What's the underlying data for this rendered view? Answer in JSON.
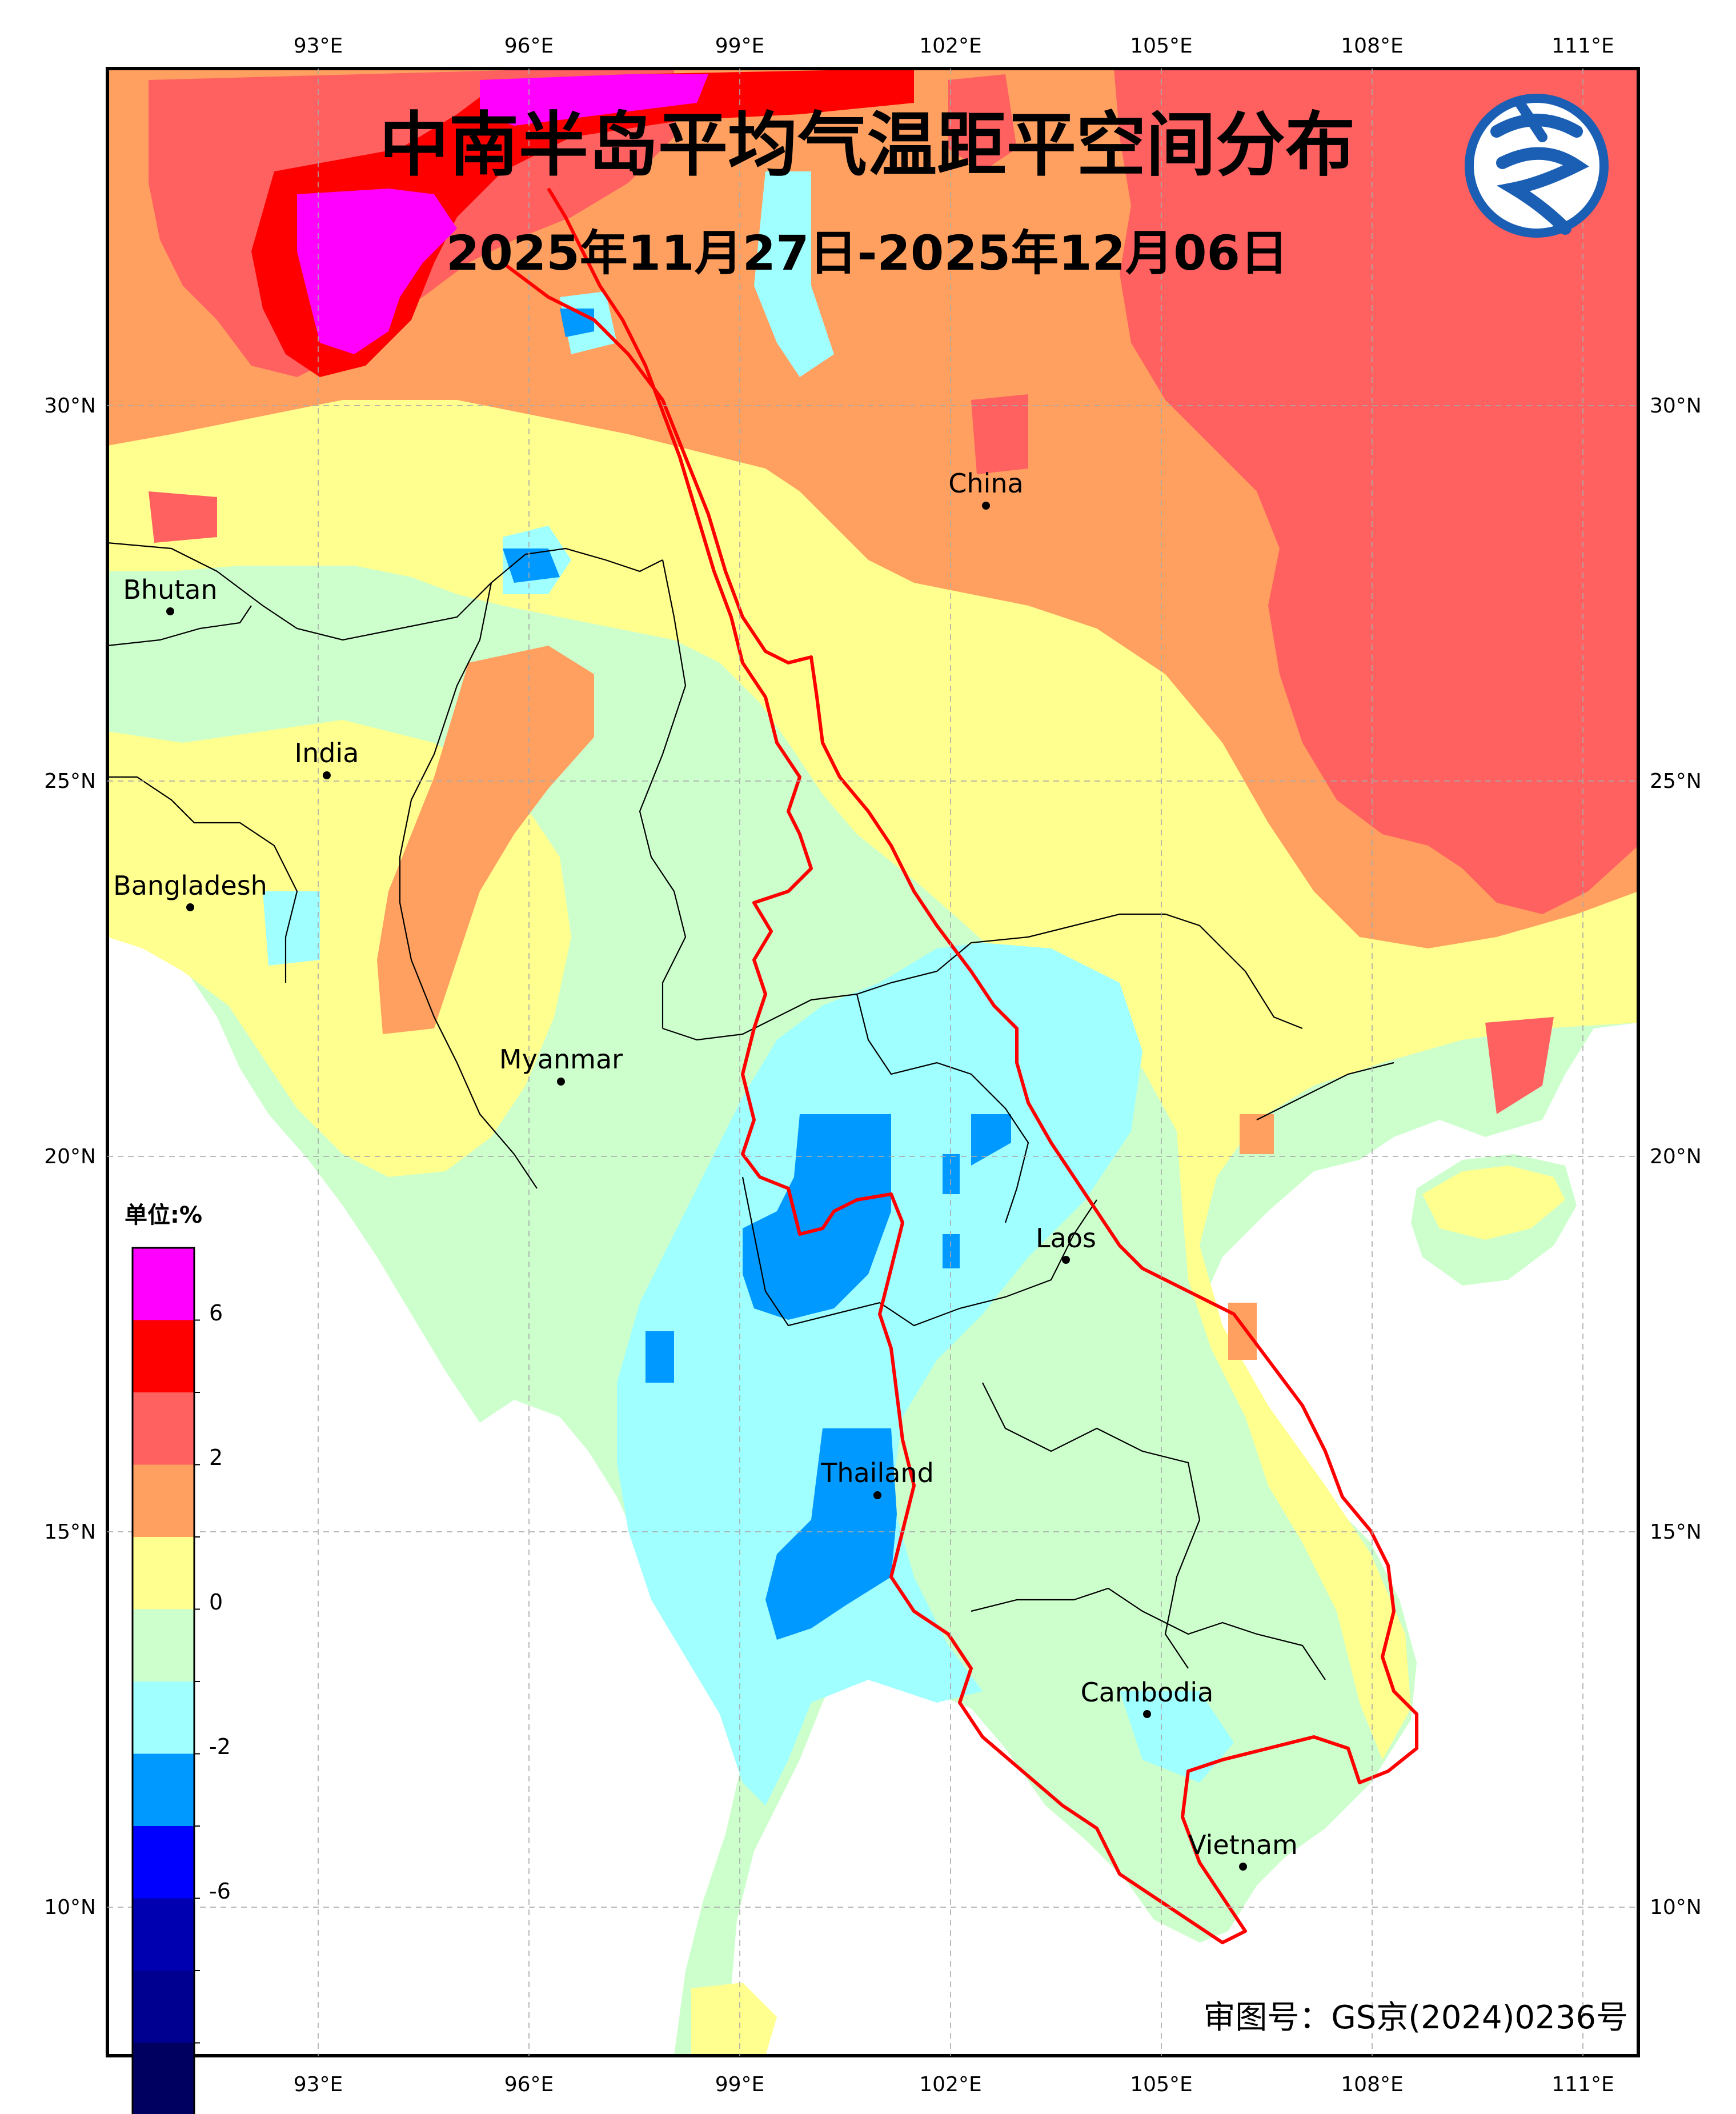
{
  "title": "中南半岛平均气温距平空间分布",
  "subtitle": "2025年11月27日-2025年12月06日",
  "approval_number": "审图号：GS京(2024)0236号",
  "logo": {
    "icon": "cma-climate-logo",
    "color": "#1a5fb4"
  },
  "axes": {
    "lon_ticks": [
      "93°E",
      "96°E",
      "99°E",
      "102°E",
      "105°E",
      "108°E",
      "111°E"
    ],
    "lat_ticks": [
      "30°N",
      "25°N",
      "20°N",
      "15°N",
      "10°N"
    ]
  },
  "places": [
    {
      "name": "China"
    },
    {
      "name": "Bhutan"
    },
    {
      "name": "India"
    },
    {
      "name": "Bangladesh"
    },
    {
      "name": "Myanmar"
    },
    {
      "name": "Laos"
    },
    {
      "name": "Thailand"
    },
    {
      "name": "Cambodia"
    },
    {
      "name": "Vietnam"
    }
  ],
  "legend": {
    "unit": "单位:%",
    "labels": [
      "6",
      "2",
      "0",
      "-2",
      "-6"
    ],
    "colors": [
      "#ff00ff",
      "#ff0000",
      "#ff6060",
      "#ffa060",
      "#ffff90",
      "#ccffcc",
      "#a0ffff",
      "#0099ff",
      "#0000ff",
      "#0000b0",
      "#000090",
      "#000060"
    ]
  },
  "colors": {
    "boundary": "#ff0000",
    "sea": "#ffffff",
    "frame": "#000000"
  }
}
